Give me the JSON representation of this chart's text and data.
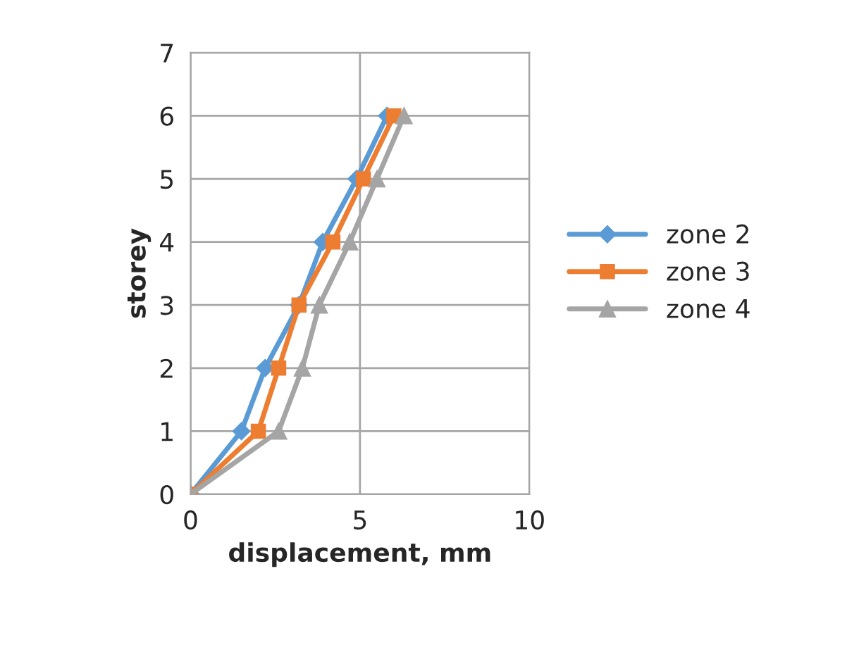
{
  "chart_data": {
    "type": "line",
    "xlabel": "displacement, mm",
    "ylabel": "storey",
    "series": [
      {
        "name": "zone 2",
        "color": "#5b9bd5",
        "marker": "diamond",
        "x": [
          0,
          1.5,
          2.2,
          3.2,
          3.9,
          4.9,
          5.8
        ],
        "values": [
          0,
          1,
          2,
          3,
          4,
          5,
          6
        ]
      },
      {
        "name": "zone 3",
        "color": "#ed7d31",
        "marker": "square",
        "x": [
          0,
          2.0,
          2.6,
          3.2,
          4.2,
          5.1,
          6.0
        ],
        "values": [
          0,
          1,
          2,
          3,
          4,
          5,
          6
        ]
      },
      {
        "name": "zone 4",
        "color": "#a5a5a5",
        "marker": "triangle",
        "x": [
          0,
          2.6,
          3.3,
          3.8,
          4.7,
          5.5,
          6.3
        ],
        "values": [
          0,
          1,
          2,
          3,
          4,
          5,
          6
        ]
      }
    ],
    "xlim": [
      0,
      10
    ],
    "xticks": [
      0,
      5,
      10
    ],
    "ylim": [
      0,
      7
    ],
    "yticks": [
      0,
      1,
      2,
      3,
      4,
      5,
      6,
      7
    ],
    "grid": true,
    "legend": "right"
  }
}
